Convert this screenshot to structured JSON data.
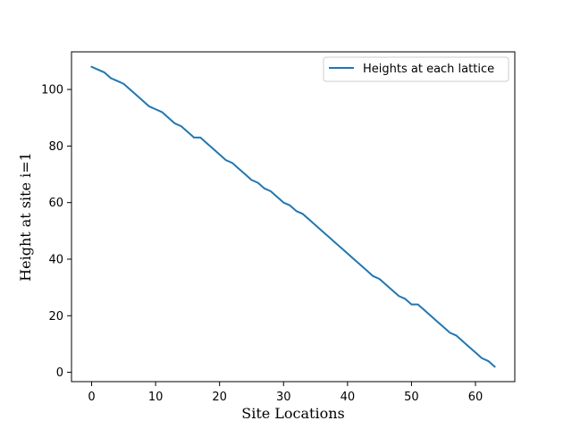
{
  "chart_data": {
    "type": "line",
    "title": "",
    "xlabel": "Site Locations",
    "ylabel": "Height at site i=1",
    "xlim": [
      -3.15,
      66.15
    ],
    "ylim": [
      -3.3,
      113.3
    ],
    "xticks": [
      0,
      10,
      20,
      30,
      40,
      50,
      60
    ],
    "yticks": [
      0,
      20,
      40,
      60,
      80,
      100
    ],
    "grid": false,
    "legend": {
      "position": "upper right",
      "entries": [
        "Heights at each lattice"
      ]
    },
    "series": [
      {
        "name": "Heights at each lattice",
        "color": "#1f77b4",
        "x": [
          0,
          1,
          2,
          3,
          4,
          5,
          6,
          7,
          8,
          9,
          10,
          11,
          12,
          13,
          14,
          15,
          16,
          17,
          18,
          19,
          20,
          21,
          22,
          23,
          24,
          25,
          26,
          27,
          28,
          29,
          30,
          31,
          32,
          33,
          34,
          35,
          36,
          37,
          38,
          39,
          40,
          41,
          42,
          43,
          44,
          45,
          46,
          47,
          48,
          49,
          50,
          51,
          52,
          53,
          54,
          55,
          56,
          57,
          58,
          59,
          60,
          61,
          62,
          63
        ],
        "y": [
          108,
          107,
          106,
          104,
          103,
          102,
          100,
          98,
          96,
          94,
          93,
          92,
          90,
          88,
          87,
          85,
          83,
          83,
          81,
          79,
          77,
          75,
          74,
          72,
          70,
          68,
          67,
          65,
          64,
          62,
          60,
          59,
          57,
          56,
          54,
          52,
          50,
          48,
          46,
          44,
          42,
          40,
          38,
          36,
          34,
          33,
          31,
          29,
          27,
          26,
          24,
          24,
          22,
          20,
          18,
          16,
          14,
          13,
          11,
          9,
          7,
          5,
          4,
          2
        ]
      }
    ]
  }
}
